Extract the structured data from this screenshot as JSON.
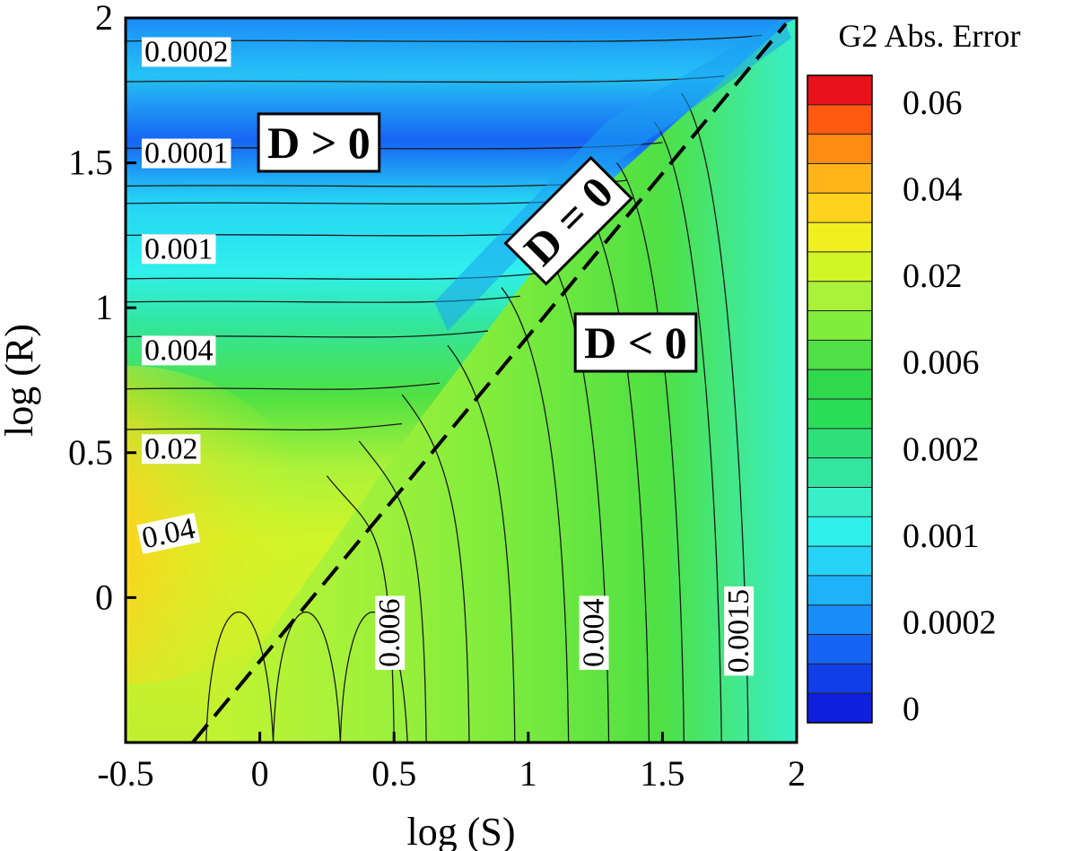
{
  "chart_data": {
    "type": "heatmap",
    "title": "",
    "xlabel": "log (S)",
    "ylabel": "log (R)",
    "xlim": [
      -0.5,
      2
    ],
    "ylim": [
      -0.5,
      2
    ],
    "x_ticks": [
      -0.5,
      0,
      0.5,
      1,
      1.5,
      2
    ],
    "x_tick_labels": [
      "-0.5",
      "0",
      "0.5",
      "1",
      "1.5",
      "2"
    ],
    "y_ticks": [
      0,
      0.5,
      1,
      1.5,
      2
    ],
    "y_tick_labels": [
      "0",
      "0.5",
      "1",
      "1.5",
      "2"
    ],
    "colorbar": {
      "title": "G2 Abs. Error",
      "labels": [
        "0.06",
        "0.04",
        "0.02",
        "0.006",
        "0.002",
        "0.001",
        "0.0002",
        "0"
      ],
      "level_values": [
        0.06,
        0.04,
        0.02,
        0.006,
        0.002,
        0.001,
        0.0002,
        0
      ],
      "colors": [
        "#e8121a",
        "#ff5a10",
        "#ff8c12",
        "#ffb51a",
        "#ffd21e",
        "#f0f020",
        "#d2f528",
        "#aaf23a",
        "#80ec3c",
        "#4ee044",
        "#2ed94c",
        "#2cdd58",
        "#2ee07a",
        "#32e6a0",
        "#38efc8",
        "#30f0ec",
        "#26d2f5",
        "#1eb2f8",
        "#1a8cf8",
        "#1664f4",
        "#123ee8",
        "#0e20dc"
      ]
    },
    "contour_labels": [
      {
        "text": "0.0002",
        "x": -0.43,
        "y": 1.85,
        "rotation": 0
      },
      {
        "text": "0.0001",
        "x": -0.43,
        "y": 1.5,
        "rotation": 0
      },
      {
        "text": "0.001",
        "x": -0.43,
        "y": 1.17,
        "rotation": 0
      },
      {
        "text": "0.004",
        "x": -0.43,
        "y": 0.82,
        "rotation": 0
      },
      {
        "text": "0.02",
        "x": -0.43,
        "y": 0.48,
        "rotation": 0
      },
      {
        "text": "0.04",
        "x": -0.43,
        "y": 0.17,
        "rotation": -12
      },
      {
        "text": "0.006",
        "x": 0.52,
        "y": -0.24,
        "rotation": -90
      },
      {
        "text": "0.004",
        "x": 1.28,
        "y": -0.24,
        "rotation": -90
      },
      {
        "text": "0.0015",
        "x": 1.82,
        "y": -0.26,
        "rotation": -90
      }
    ],
    "regions": [
      {
        "text": "D > 0",
        "x": 0.22,
        "y": 1.57,
        "rotation": 0
      },
      {
        "text": "D = 0",
        "x": 1.15,
        "y": 1.3,
        "rotation": -45
      },
      {
        "text": "D < 0",
        "x": 1.4,
        "y": 0.88,
        "rotation": 0
      }
    ],
    "dashed_line": {
      "x": [
        -0.25,
        1.96
      ],
      "y": [
        -0.5,
        1.98
      ]
    },
    "grid": false,
    "legend": "right"
  }
}
